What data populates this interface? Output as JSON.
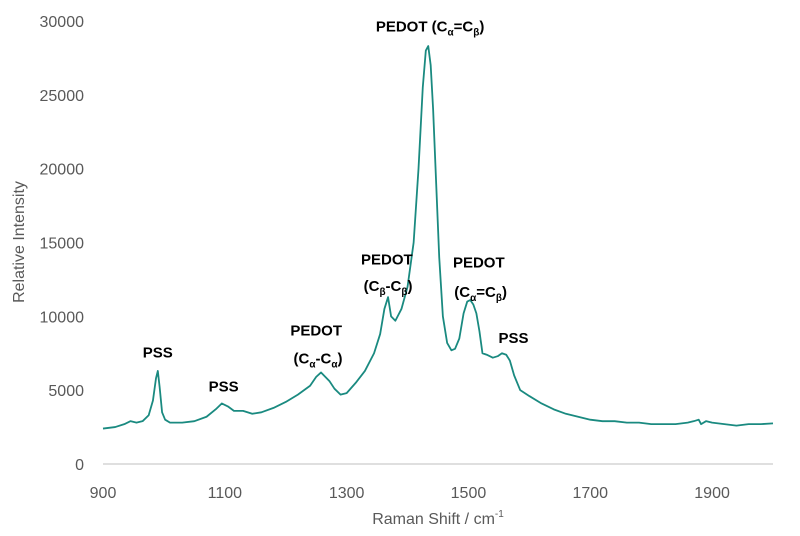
{
  "chart_data": {
    "type": "line",
    "title": "",
    "xlabel": "Raman Shift / cm",
    "xlabel_superscript": "-1",
    "ylabel": "Relative Intensity",
    "xlim": [
      900,
      2000
    ],
    "ylim": [
      0,
      30000
    ],
    "xticks": [
      "900",
      "1100",
      "1300",
      "1500",
      "1700",
      "1900"
    ],
    "yticks": [
      "0",
      "5000",
      "10000",
      "15000",
      "20000",
      "25000",
      "30000"
    ],
    "grid": false,
    "legend": "none",
    "line_color": "#1a8a80",
    "series": [
      {
        "x": [
          900,
          920,
          935,
          945,
          955,
          965,
          975,
          982,
          987,
          990,
          993,
          997,
          1002,
          1010,
          1030,
          1050,
          1070,
          1085,
          1095,
          1105,
          1115,
          1130,
          1145,
          1160,
          1180,
          1200,
          1220,
          1240,
          1250,
          1258,
          1265,
          1272,
          1280,
          1290,
          1300,
          1315,
          1330,
          1345,
          1355,
          1362,
          1368,
          1373,
          1380,
          1390,
          1400,
          1410,
          1418,
          1425,
          1430,
          1434,
          1438,
          1442,
          1447,
          1452,
          1458,
          1465,
          1472,
          1478,
          1485,
          1492,
          1498,
          1503,
          1508,
          1513,
          1518,
          1523,
          1530,
          1540,
          1548,
          1555,
          1562,
          1568,
          1575,
          1585,
          1600,
          1620,
          1640,
          1660,
          1680,
          1700,
          1720,
          1740,
          1760,
          1780,
          1800,
          1820,
          1840,
          1860,
          1870,
          1878,
          1882,
          1890,
          1900,
          1920,
          1940,
          1960,
          1980,
          2000
        ],
        "y": [
          2400,
          2500,
          2700,
          2900,
          2800,
          2900,
          3300,
          4300,
          5800,
          6300,
          5200,
          3500,
          3000,
          2800,
          2800,
          2900,
          3200,
          3700,
          4100,
          3900,
          3600,
          3600,
          3400,
          3500,
          3800,
          4200,
          4700,
          5300,
          5900,
          6200,
          5900,
          5600,
          5100,
          4700,
          4800,
          5500,
          6300,
          7500,
          8800,
          10500,
          11300,
          10000,
          9700,
          10500,
          12000,
          15000,
          20000,
          25500,
          28000,
          28300,
          27000,
          24000,
          19000,
          14000,
          10000,
          8200,
          7700,
          7800,
          8500,
          10200,
          11000,
          11100,
          10800,
          10200,
          9000,
          7500,
          7400,
          7200,
          7300,
          7500,
          7400,
          7000,
          6000,
          5000,
          4600,
          4100,
          3700,
          3400,
          3200,
          3000,
          2900,
          2900,
          2800,
          2800,
          2700,
          2700,
          2700,
          2800,
          2900,
          3000,
          2700,
          2900,
          2800,
          2700,
          2600,
          2700,
          2700,
          2750
        ]
      }
    ],
    "annotations": [
      {
        "text": "PSS",
        "x": 990,
        "y": 7200
      },
      {
        "text": "PSS",
        "x": 1098,
        "y": 4900
      },
      {
        "text": "PEDOT",
        "x": 1250,
        "y": 8700
      },
      {
        "text": "(C",
        "sub1": "α",
        "mid": "-C",
        "sub2": "α",
        "end": ")",
        "x": 1253,
        "y": 6800
      },
      {
        "text": "PEDOT",
        "x": 1366,
        "y": 13500
      },
      {
        "text": "(C",
        "sub1": "β",
        "mid": "-C",
        "sub2": "β",
        "end": ")",
        "x": 1368,
        "y": 11700
      },
      {
        "text": "PEDOT (C",
        "sub1": "α",
        "mid": "=C",
        "sub2": "β",
        "end": ")",
        "x": 1437,
        "y": 29300
      },
      {
        "text": "PEDOT",
        "x": 1517,
        "y": 13300
      },
      {
        "text": "(C",
        "sub1": "α",
        "mid": "=C",
        "sub2": "β",
        "end": ")",
        "x": 1520,
        "y": 11300
      },
      {
        "text": "PSS",
        "x": 1574,
        "y": 8200
      }
    ]
  }
}
